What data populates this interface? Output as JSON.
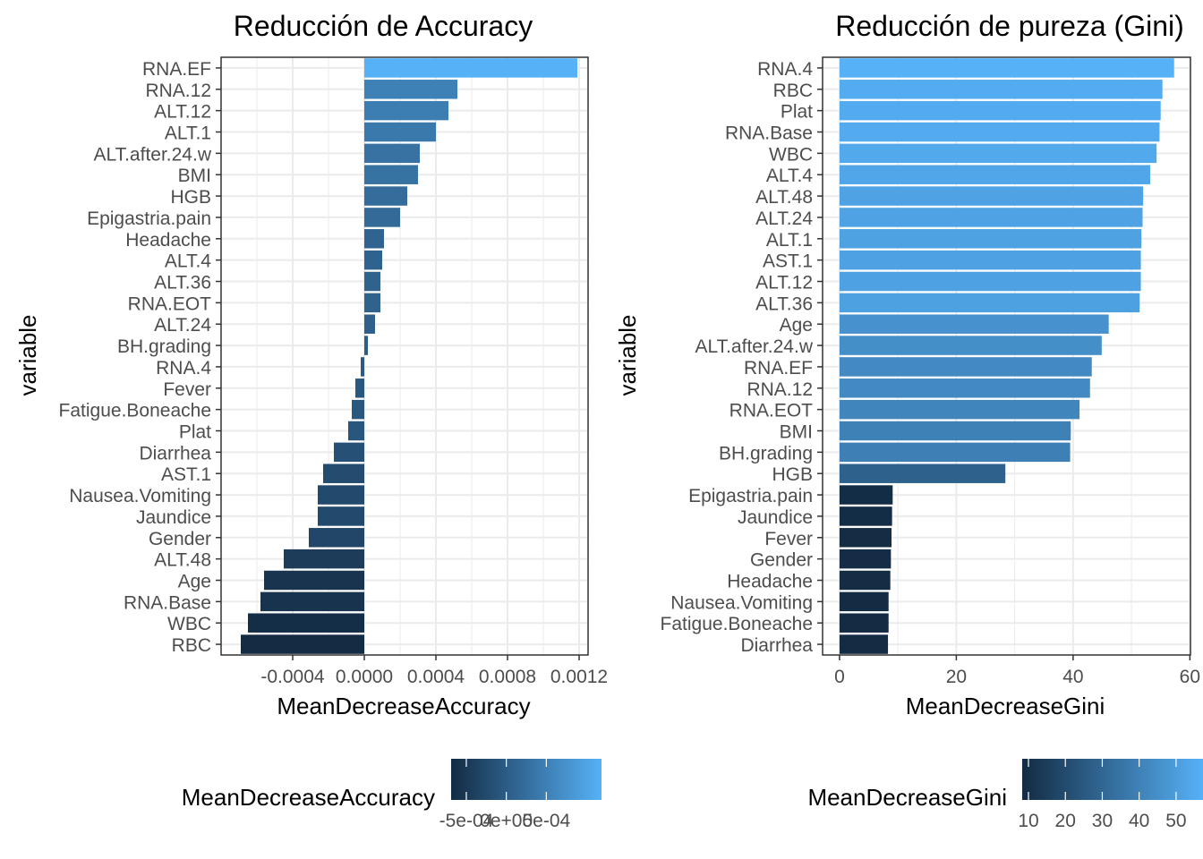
{
  "chart_data": [
    {
      "type": "bar",
      "orientation": "horizontal",
      "title": "Reducción de Accuracy",
      "xlabel": "MeanDecreaseAccuracy",
      "ylabel": "variable",
      "xlim": [
        -0.0008,
        0.00125
      ],
      "xticks": [
        -0.0004,
        0.0,
        0.0004,
        0.0008,
        0.0012
      ],
      "xtick_labels": [
        "-0.0004",
        "0.0000",
        "0.0004",
        "0.0008",
        "0.0012"
      ],
      "grid": true,
      "categories": [
        "RNA.EF",
        "RNA.12",
        "ALT.12",
        "ALT.1",
        "ALT.after.24.w",
        "BMI",
        "HGB",
        "Epigastria.pain",
        "Headache",
        "ALT.4",
        "ALT.36",
        "RNA.EOT",
        "ALT.24",
        "BH.grading",
        "RNA.4",
        "Fever",
        "Fatigue.Boneache",
        "Plat",
        "Diarrhea",
        "AST.1",
        "Nausea.Vomiting",
        "Jaundice",
        "Gender",
        "ALT.48",
        "Age",
        "RNA.Base",
        "WBC",
        "RBC"
      ],
      "values": [
        0.00119,
        0.00052,
        0.00047,
        0.0004,
        0.00031,
        0.0003,
        0.00024,
        0.0002,
        0.00011,
        0.0001,
        9e-05,
        9e-05,
        6e-05,
        2e-05,
        -2e-05,
        -5e-05,
        -7e-05,
        -9e-05,
        -0.00017,
        -0.00023,
        -0.00026,
        -0.00026,
        -0.00031,
        -0.00045,
        -0.00056,
        -0.00058,
        -0.00065,
        -0.00069
      ],
      "legend": {
        "title": "MeanDecreaseAccuracy",
        "position": "bottom",
        "color_low": "#132b43",
        "color_high": "#56b1f7",
        "range": [
          -0.00069,
          0.00119
        ],
        "ticks": [
          -0.0005,
          0.0,
          0.0005
        ],
        "tick_labels": [
          "-5e-04",
          "0e+00",
          "5e-04"
        ]
      }
    },
    {
      "type": "bar",
      "orientation": "horizontal",
      "title": "Reducción de pureza (Gini)",
      "xlabel": "MeanDecreaseGini",
      "ylabel": "variable",
      "xlim": [
        -2.9,
        60.1
      ],
      "xticks": [
        0,
        20,
        40,
        60
      ],
      "xtick_labels": [
        "0",
        "20",
        "40",
        "60"
      ],
      "grid": true,
      "categories": [
        "RNA.4",
        "RBC",
        "Plat",
        "RNA.Base",
        "WBC",
        "ALT.4",
        "ALT.48",
        "ALT.24",
        "ALT.1",
        "AST.1",
        "ALT.12",
        "ALT.36",
        "Age",
        "ALT.after.24.w",
        "RNA.EF",
        "RNA.12",
        "RNA.EOT",
        "BMI",
        "BH.grading",
        "HGB",
        "Epigastria.pain",
        "Jaundice",
        "Fever",
        "Gender",
        "Headache",
        "Nausea.Vomiting",
        "Fatigue.Boneache",
        "Diarrhea"
      ],
      "values": [
        57.3,
        55.3,
        55.0,
        54.8,
        54.3,
        53.2,
        52.0,
        51.9,
        51.7,
        51.6,
        51.6,
        51.4,
        46.1,
        44.9,
        43.2,
        42.9,
        41.1,
        39.6,
        39.5,
        28.4,
        9.1,
        9.0,
        8.9,
        8.8,
        8.7,
        8.4,
        8.4,
        8.3
      ],
      "legend": {
        "title": "MeanDecreaseGini",
        "position": "bottom",
        "color_low": "#132b43",
        "color_high": "#56b1f7",
        "range": [
          8.3,
          57.3
        ],
        "ticks": [
          10,
          20,
          30,
          40,
          50
        ],
        "tick_labels": [
          "10",
          "20",
          "30",
          "40",
          "50"
        ]
      }
    }
  ]
}
